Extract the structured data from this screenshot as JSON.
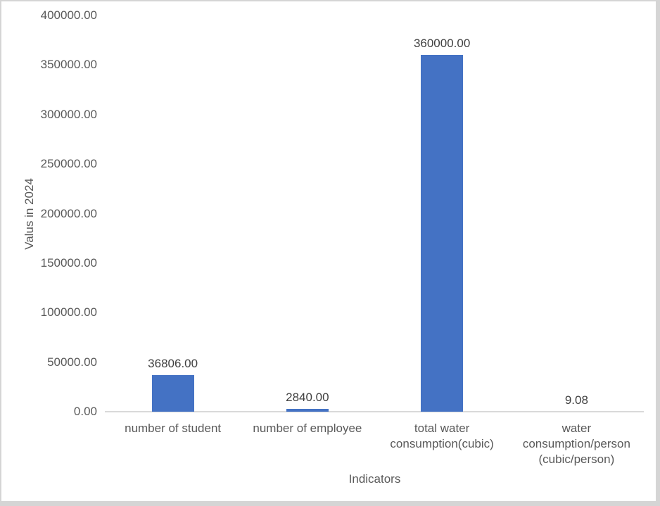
{
  "chart_data": {
    "type": "bar",
    "title": "",
    "xlabel": "Indicators",
    "ylabel": "Valus in 2024",
    "categories": [
      "number of student",
      "number of employee",
      "total water\nconsumption(cubic)",
      "water\nconsumption/person\n(cubic/person)"
    ],
    "values": [
      36806,
      2840,
      360000,
      9.08
    ],
    "data_labels": [
      "36806.00",
      "2840.00",
      "360000.00",
      "9.08"
    ],
    "ylim": [
      0,
      400000
    ],
    "ytick_labels": [
      "0.00",
      "50000.00",
      "100000.00",
      "150000.00",
      "200000.00",
      "250000.00",
      "300000.00",
      "350000.00",
      "400000.00"
    ],
    "gridlines": false,
    "legend_position": "none",
    "bar_color": "#4472C4",
    "axis_line_color": "#D9D9D9",
    "tick_text_color": "#595959",
    "data_label_color": "#404040"
  }
}
